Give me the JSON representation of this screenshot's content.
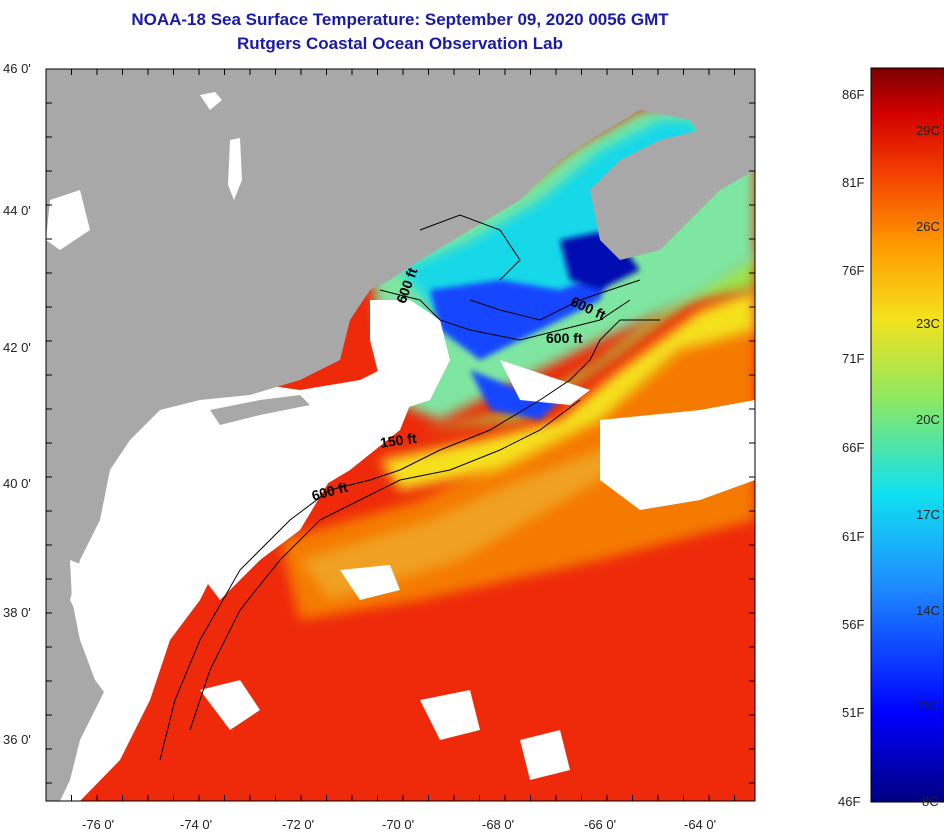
{
  "header": {
    "title": "NOAA-18 Sea Surface Temperature:  September 09, 2020 0056 GMT",
    "subtitle": "Rutgers Coastal Ocean Observation Lab"
  },
  "map": {
    "lat_labels": [
      "46 0'",
      "44 0'",
      "42 0'",
      "40 0'",
      "38 0'",
      "36 0'"
    ],
    "lon_labels": [
      "-76 0'",
      "-74 0'",
      "-72 0'",
      "-70 0'",
      "-68 0'",
      "-66 0'",
      "-64 0'"
    ],
    "contour_labels": [
      "600 ft",
      "600 ft",
      "600 ft",
      "150 ft",
      "600 ft"
    ]
  },
  "colorbar": {
    "fahrenheit_labels": [
      "86F",
      "81F",
      "76F",
      "71F",
      "66F",
      "61F",
      "56F",
      "51F",
      "46F"
    ],
    "celsius_labels": [
      "29C",
      "26C",
      "23C",
      "20C",
      "17C",
      "14C",
      "11C",
      "8C"
    ],
    "colors": {
      "hot": "#7a0000",
      "red": "#e11500",
      "orange": "#f57a00",
      "yellow": "#f4e11c",
      "green": "#9fe24a",
      "cyan": "#12d8e8",
      "blue": "#1446ff",
      "navy": "#000080"
    }
  },
  "colors": {
    "land": "#a8a8a8",
    "cloud": "#ffffff",
    "title": "#1a1aa8"
  }
}
